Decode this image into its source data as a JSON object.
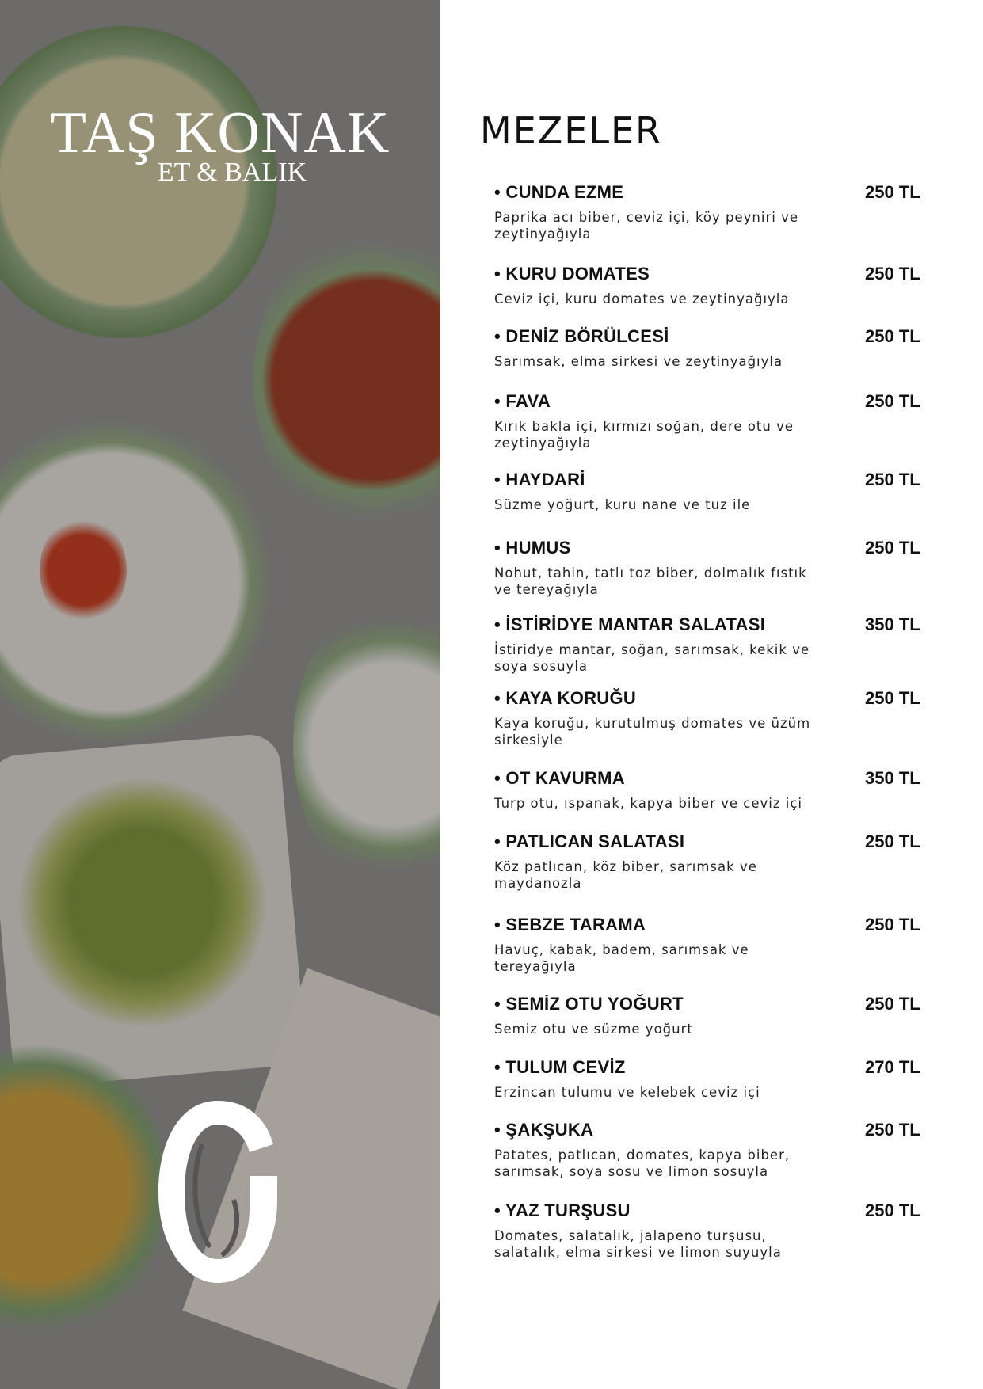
{
  "brand": {
    "name": "TAŞ KONAK",
    "subtitle": "ET & BALIK"
  },
  "section_title": "MEZELER",
  "items": [
    {
      "name": "• CUNDA EZME",
      "price": "250 TL",
      "desc": "Paprika acı biber, ceviz içi, köy peyniri ve zeytinyağıyla"
    },
    {
      "name": "• KURU DOMATES",
      "price": "250 TL",
      "desc": "Ceviz içi, kuru domates ve zeytinyağıyla"
    },
    {
      "name": "• DENİZ BÖRÜLCESİ",
      "price": "250 TL",
      "desc": "Sarımsak, elma sirkesi ve zeytinyağıyla"
    },
    {
      "name": "• FAVA",
      "price": "250 TL",
      "desc": "Kırık bakla içi, kırmızı soğan, dere otu ve zeytinyağıyla"
    },
    {
      "name": "• HAYDARİ",
      "price": "250 TL",
      "desc": "Süzme yoğurt, kuru nane ve tuz ile"
    },
    {
      "name": "• HUMUS",
      "price": "250 TL",
      "desc": "Nohut, tahin, tatlı toz biber, dolmalık fıstık ve tereyağıyla"
    },
    {
      "name": "• İSTİRİDYE MANTAR SALATASI",
      "price": "350 TL",
      "desc": "İstiridye mantar, soğan, sarımsak, kekik ve soya sosuyla"
    },
    {
      "name": "• KAYA KORUĞU",
      "price": "250 TL",
      "desc": "Kaya koruğu, kurutulmuş domates ve üzüm sirkesiyle"
    },
    {
      "name": "• OT KAVURMA",
      "price": "350 TL",
      "desc": "Turp otu, ıspanak, kapya biber ve ceviz içi"
    },
    {
      "name": "• PATLICAN SALATASI",
      "price": "250 TL",
      "desc": "Köz patlıcan, köz biber, sarımsak ve maydanozla"
    },
    {
      "name": "• SEBZE TARAMA",
      "price": "250 TL",
      "desc": "Havuç, kabak, badem, sarımsak ve tereyağıyla"
    },
    {
      "name": "• SEMİZ OTU YOĞURT",
      "price": "250 TL",
      "desc": "Semiz otu ve süzme yoğurt"
    },
    {
      "name": "• TULUM CEVİZ",
      "price": "270 TL",
      "desc": "Erzincan tulumu ve kelebek ceviz içi"
    },
    {
      "name": "• ŞAKŞUKA",
      "price": "250 TL",
      "desc": "Patates, patlıcan, domates, kapya biber, sarımsak, soya sosu ve limon sosuyla"
    },
    {
      "name": "• YAZ TURŞUSU",
      "price": "250 TL",
      "desc": "Domates, salatalık, jalapeno turşusu, salatalık, elma sirkesi ve limon suyuyla"
    }
  ]
}
